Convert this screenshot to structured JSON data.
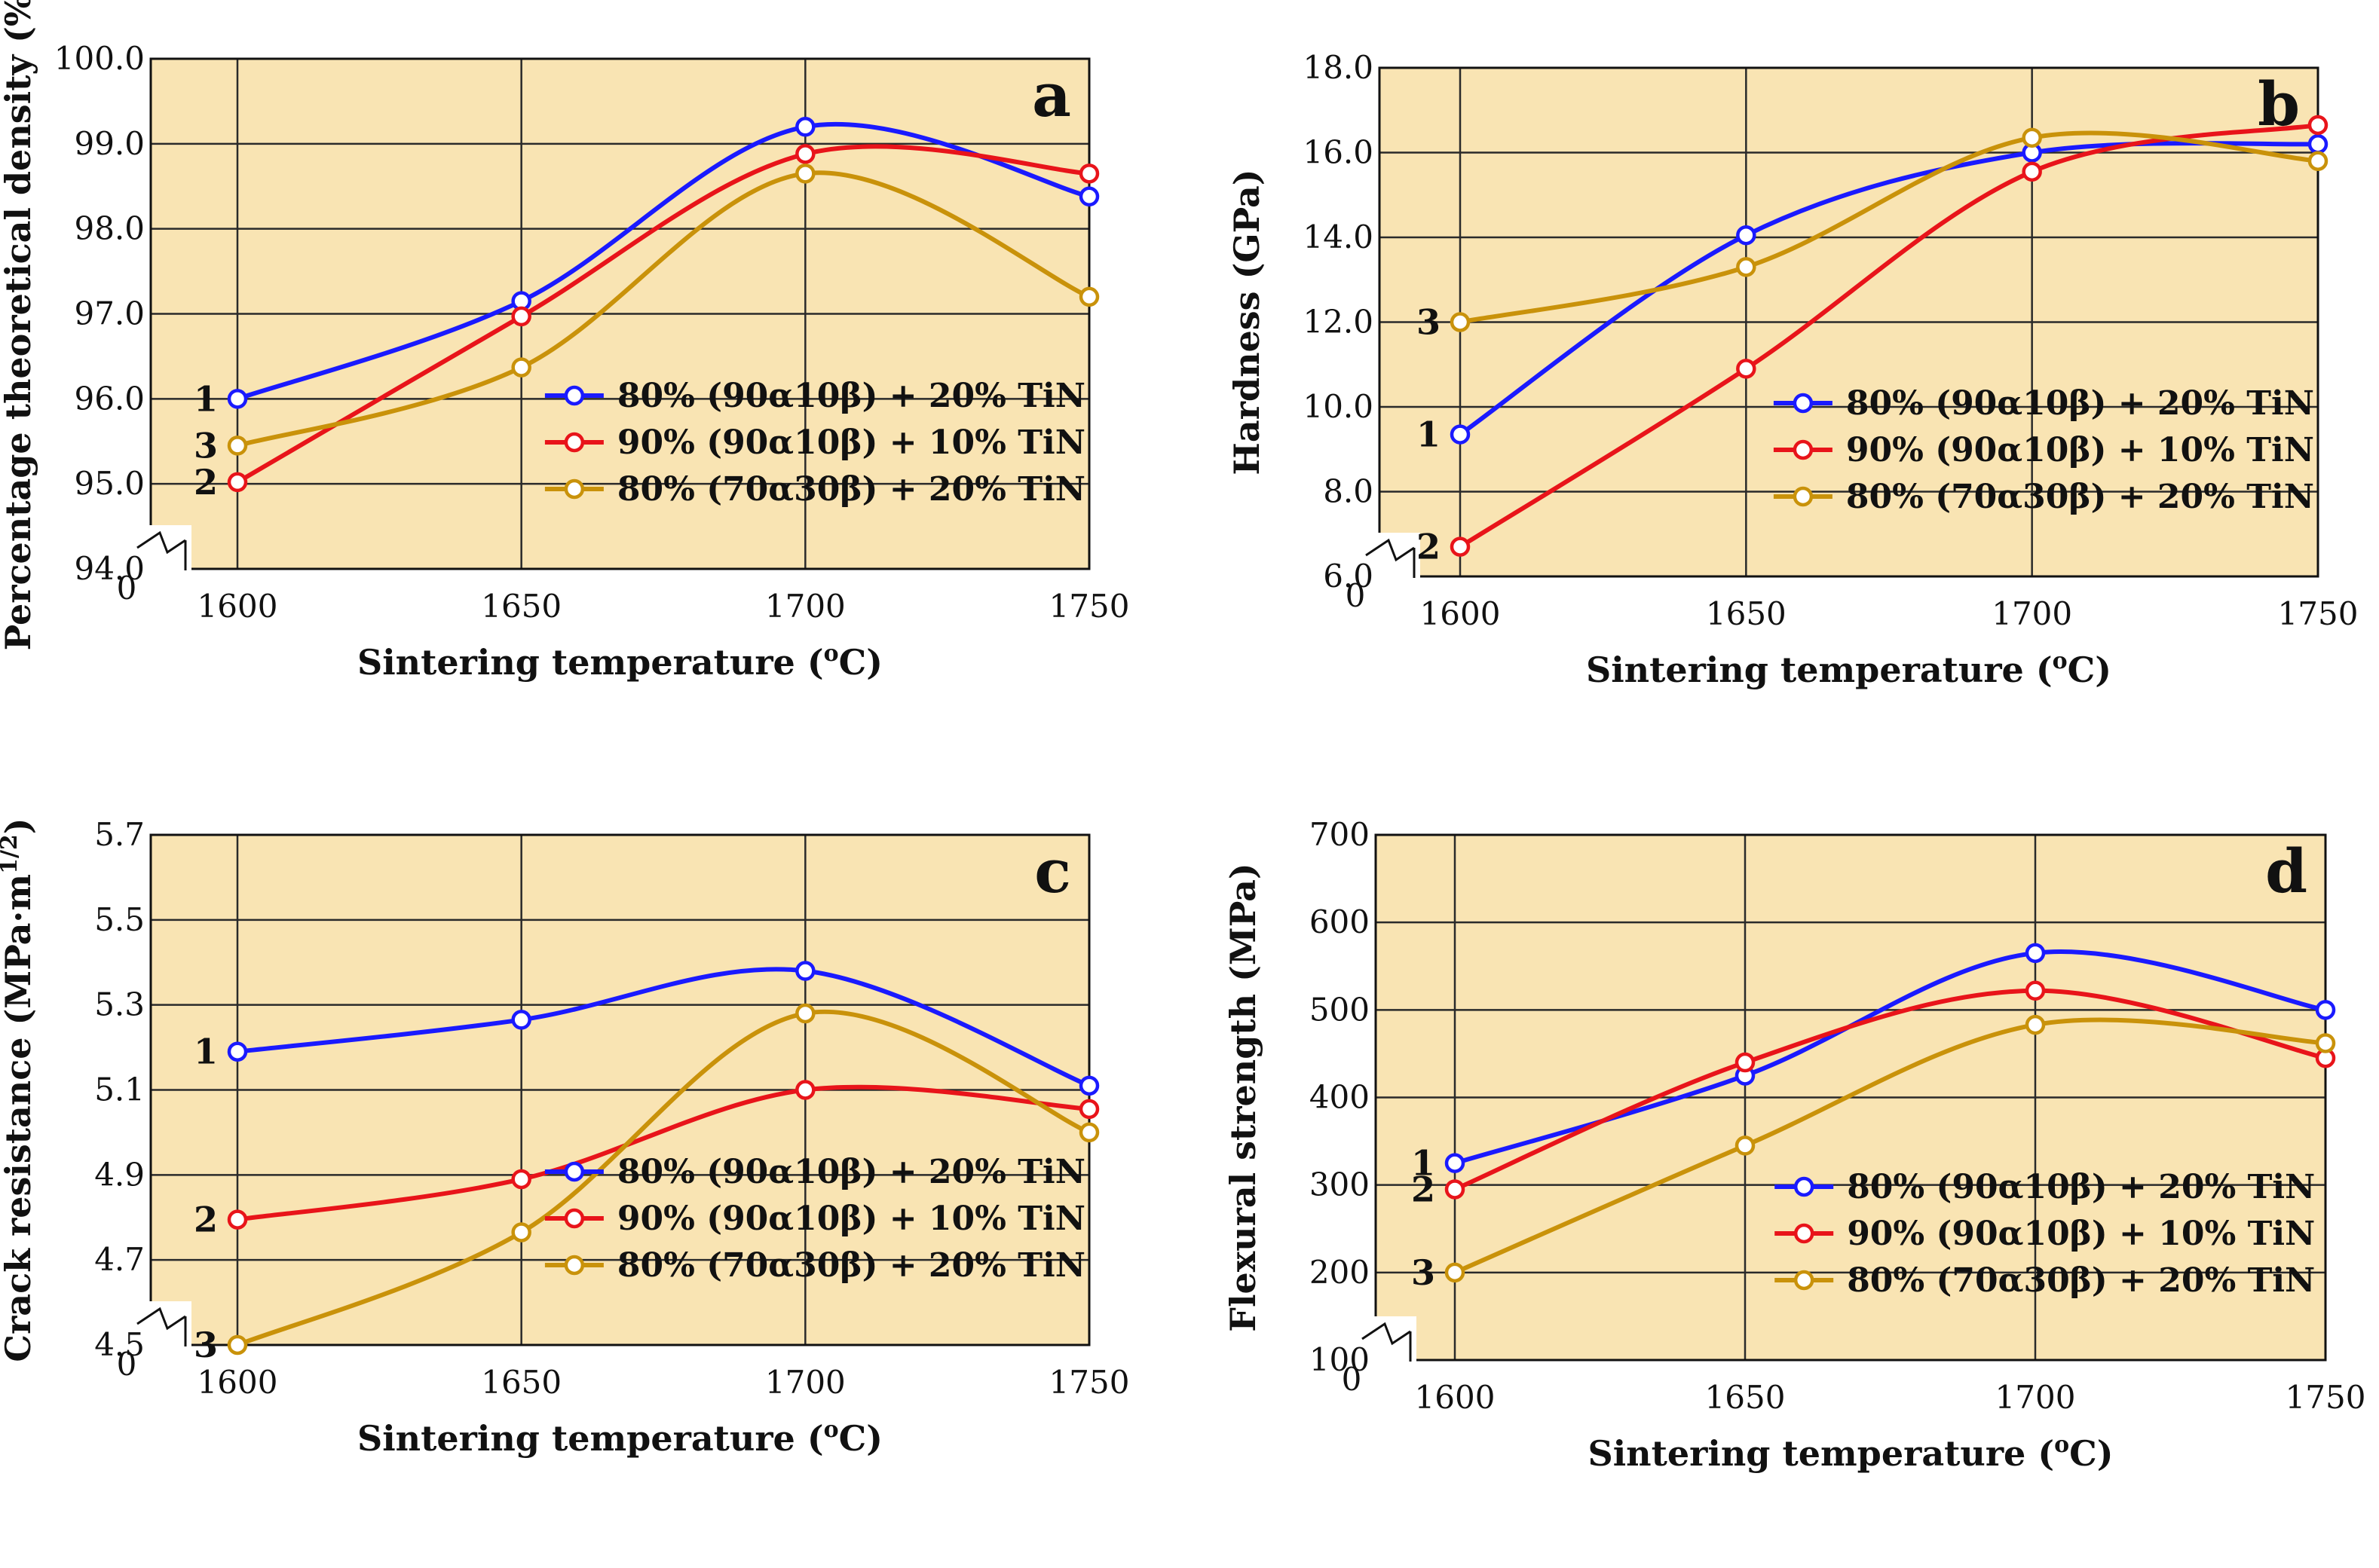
{
  "colors": {
    "background": "#f9e4b3",
    "grid": "#2a2a2a",
    "series": [
      "#1a1aff",
      "#e8141a",
      "#c9920a"
    ]
  },
  "chart_data": [
    {
      "type": "line",
      "panel": "a",
      "xlabel_text": "Sintering temperature (",
      "xlabel_sup": "o",
      "xlabel_tail": "C)",
      "ylabel": "Percentage theoretical density (%)",
      "x": [
        1600,
        1650,
        1700,
        1750
      ],
      "x_tick_labels": [
        "1600",
        "1650",
        "1700",
        "1750"
      ],
      "xlim": [
        1600,
        1750
      ],
      "ylim": [
        94.0,
        100.0
      ],
      "y_ticks": [
        94.0,
        95.0,
        96.0,
        97.0,
        98.0,
        99.0,
        100.0
      ],
      "y_tick_labels": [
        "94.0",
        "95.0",
        "96.0",
        "97.0",
        "98.0",
        "99.0",
        "100.0"
      ],
      "zero_label": "0",
      "axis_break": true,
      "legend_position": "bottom-right",
      "series": [
        {
          "name": "80% (90α10β) + 20% TiN",
          "curve_label": "1",
          "values": [
            96.0,
            97.15,
            99.2,
            98.38
          ]
        },
        {
          "name": "90% (90α10β) + 10% TiN",
          "curve_label": "2",
          "values": [
            95.02,
            96.97,
            98.88,
            98.65
          ]
        },
        {
          "name": "80% (70α30β) + 20% TiN",
          "curve_label": "3",
          "values": [
            95.45,
            96.37,
            98.65,
            97.2
          ]
        }
      ]
    },
    {
      "type": "line",
      "panel": "b",
      "xlabel_text": "Sintering temperature (",
      "xlabel_sup": "o",
      "xlabel_tail": "C)",
      "ylabel": "Hardness (GPa)",
      "x": [
        1600,
        1650,
        1700,
        1750
      ],
      "x_tick_labels": [
        "1600",
        "1650",
        "1700",
        "1750"
      ],
      "xlim": [
        1600,
        1750
      ],
      "ylim": [
        6.0,
        18.0
      ],
      "y_ticks": [
        6.0,
        8.0,
        10.0,
        12.0,
        14.0,
        16.0,
        18.0
      ],
      "y_tick_labels": [
        "6.0",
        "8.0",
        "10.0",
        "12.0",
        "14.0",
        "16.0",
        "18.0"
      ],
      "zero_label": "0",
      "axis_break": true,
      "legend_position": "bottom-right",
      "series": [
        {
          "name": "80% (90α10β) + 20% TiN",
          "curve_label": "1",
          "values": [
            9.35,
            14.05,
            16.0,
            16.2
          ]
        },
        {
          "name": "90% (90α10β) + 10% TiN",
          "curve_label": "2",
          "values": [
            6.7,
            10.9,
            15.55,
            16.65
          ]
        },
        {
          "name": "80% (70α30β) + 20% TiN",
          "curve_label": "3",
          "values": [
            12.0,
            13.3,
            16.35,
            15.8
          ]
        }
      ]
    },
    {
      "type": "line",
      "panel": "c",
      "xlabel_text": "Sintering temperature (",
      "xlabel_sup": "o",
      "xlabel_tail": "C)",
      "ylabel": "Crack resistance (MPa·m",
      "ylabel_sup": "1/2",
      "ylabel_tail": ")",
      "x": [
        1600,
        1650,
        1700,
        1750
      ],
      "x_tick_labels": [
        "1600",
        "1650",
        "1700",
        "1750"
      ],
      "xlim": [
        1600,
        1750
      ],
      "ylim": [
        4.5,
        5.7
      ],
      "y_ticks": [
        4.5,
        4.7,
        4.9,
        5.1,
        5.3,
        5.5,
        5.7
      ],
      "y_tick_labels": [
        "4.5",
        "4.7",
        "4.9",
        "5.1",
        "5.3",
        "5.5",
        "5.7"
      ],
      "zero_label": "0",
      "axis_break": true,
      "legend_position": "bottom-right",
      "series": [
        {
          "name": "80% (90α10β) + 20% TiN",
          "curve_label": "1",
          "values": [
            5.19,
            5.265,
            5.38,
            5.11
          ]
        },
        {
          "name": "90% (90α10β) + 10% TiN",
          "curve_label": "2",
          "values": [
            4.795,
            4.89,
            5.1,
            5.055
          ]
        },
        {
          "name": "80% (70α30β) + 20% TiN",
          "curve_label": "3",
          "values": [
            4.5,
            4.765,
            5.28,
            5.0
          ]
        }
      ]
    },
    {
      "type": "line",
      "panel": "d",
      "xlabel_text": "Sintering temperature (",
      "xlabel_sup": "o",
      "xlabel_tail": "C)",
      "ylabel": "Flexural strength (MPa)",
      "x": [
        1600,
        1650,
        1700,
        1750
      ],
      "x_tick_labels": [
        "1600",
        "1650",
        "1700",
        "1750"
      ],
      "xlim": [
        1600,
        1750
      ],
      "ylim": [
        100,
        700
      ],
      "y_ticks": [
        100,
        200,
        300,
        400,
        500,
        600,
        700
      ],
      "y_tick_labels": [
        "100",
        "200",
        "300",
        "400",
        "500",
        "600",
        "700"
      ],
      "zero_label": "0",
      "axis_break": true,
      "legend_position": "bottom-right",
      "series": [
        {
          "name": "80% (90α10β) + 20% TiN",
          "curve_label": "1",
          "values": [
            325,
            425,
            565,
            500
          ]
        },
        {
          "name": "90% (90α10β) + 10% TiN",
          "curve_label": "2",
          "values": [
            295,
            440,
            522,
            445
          ]
        },
        {
          "name": "80% (70α30β) + 20% TiN",
          "curve_label": "3",
          "values": [
            200,
            345,
            483,
            462
          ]
        }
      ]
    }
  ]
}
